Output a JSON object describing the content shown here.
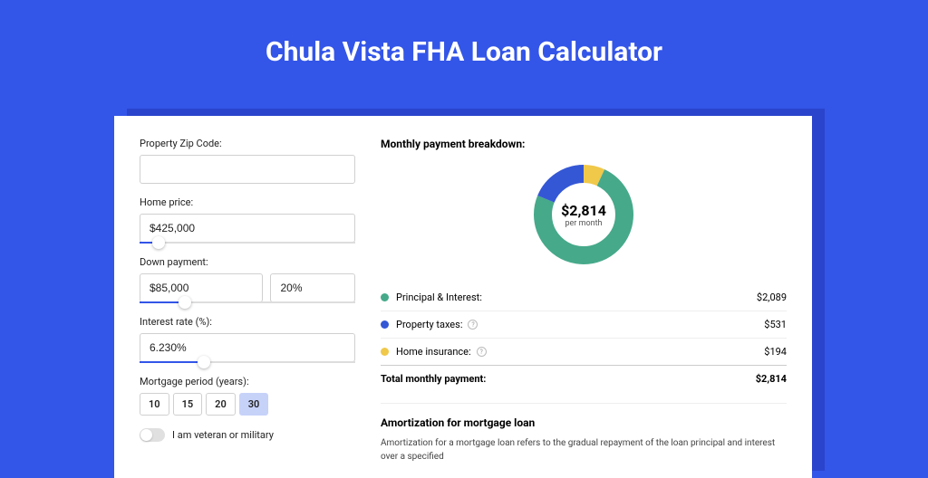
{
  "page": {
    "title": "Chula Vista FHA Loan Calculator"
  },
  "colors": {
    "page_bg": "#3355e8",
    "shadow_bg": "#2a44cc",
    "card_bg": "#ffffff",
    "accent": "#3355e8",
    "principal": "#46a98a",
    "taxes": "#3457d5",
    "insurance": "#f0c84a"
  },
  "form": {
    "zip_label": "Property Zip Code:",
    "zip_value": "",
    "home_price_label": "Home price:",
    "home_price_value": "$425,000",
    "home_price_slider_pct": 9,
    "down_label": "Down payment:",
    "down_amount": "$85,000",
    "down_pct": "20%",
    "down_slider_pct": 21,
    "rate_label": "Interest rate (%):",
    "rate_value": "6.230%",
    "rate_slider_pct": 30,
    "period_label": "Mortgage period (years):",
    "periods": [
      "10",
      "15",
      "20",
      "30"
    ],
    "period_selected_index": 3,
    "veteran_label": "I am veteran or military"
  },
  "breakdown": {
    "title": "Monthly payment breakdown:",
    "center_amount": "$2,814",
    "center_sub": "per month",
    "rows": [
      {
        "label": "Principal & Interest:",
        "value": "$2,089",
        "color": "#46a98a",
        "info": false,
        "pct": 74.2
      },
      {
        "label": "Property taxes:",
        "value": "$531",
        "color": "#3457d5",
        "info": true,
        "pct": 18.9
      },
      {
        "label": "Home insurance:",
        "value": "$194",
        "color": "#f0c84a",
        "info": true,
        "pct": 6.9
      }
    ],
    "total_label": "Total monthly payment:",
    "total_value": "$2,814"
  },
  "amortization": {
    "title": "Amortization for mortgage loan",
    "text": "Amortization for a mortgage loan refers to the gradual repayment of the loan principal and interest over a specified"
  }
}
